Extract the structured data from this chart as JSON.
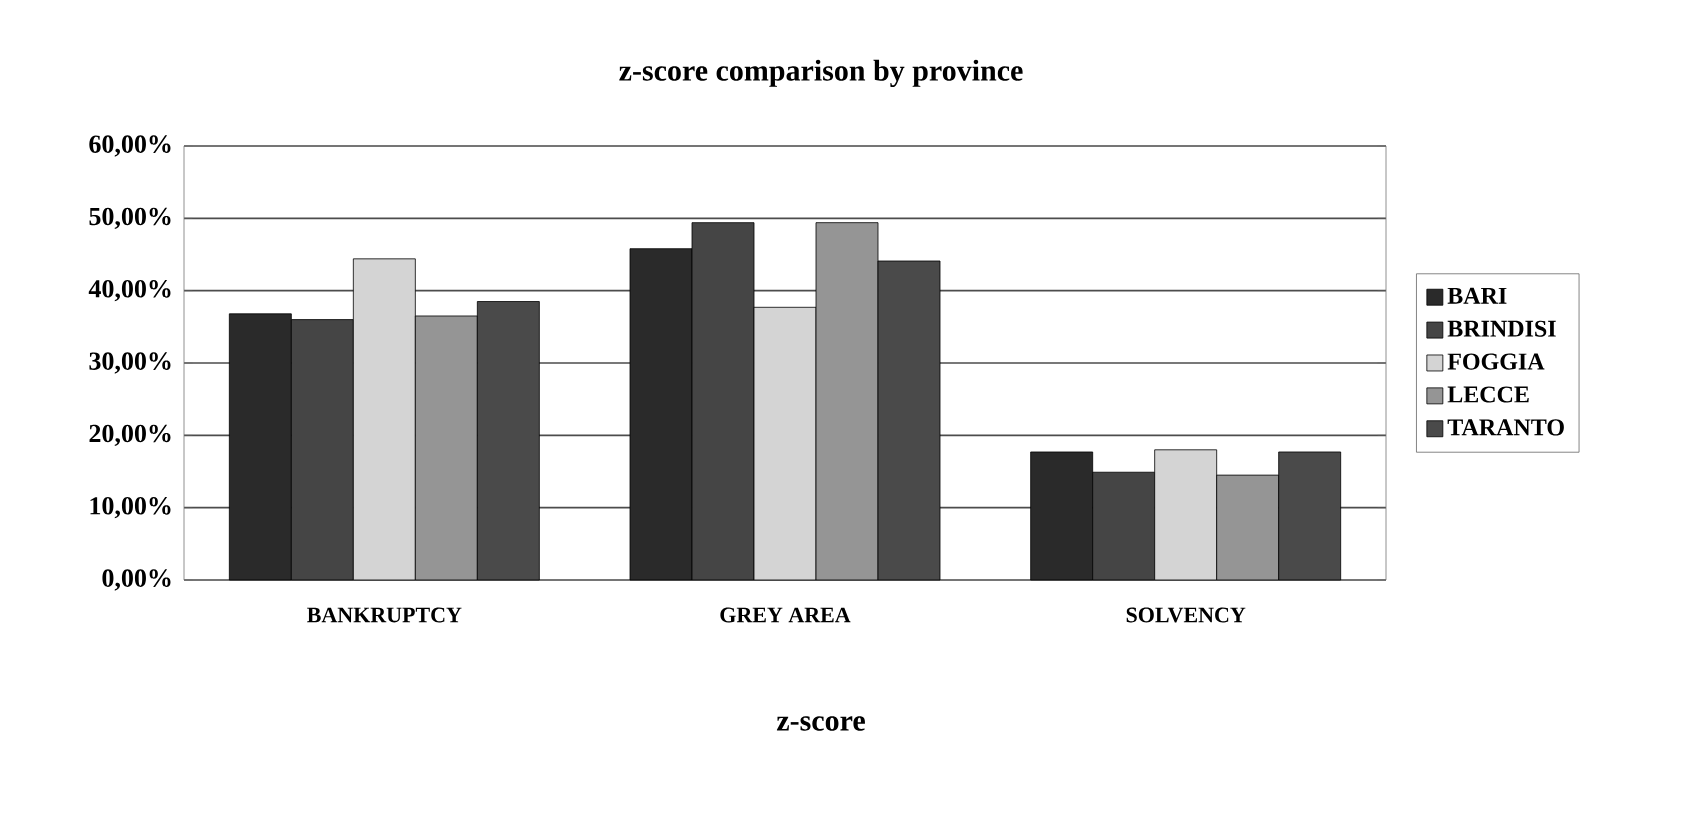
{
  "chart_data": {
    "type": "bar",
    "title": "z-score comparison by province",
    "xlabel": "z-score",
    "categories": [
      "BANKRUPTCY",
      "GREY AREA",
      "SOLVENCY"
    ],
    "series": [
      {
        "name": "BARI",
        "color": "#2a2a2a",
        "values": [
          36.8,
          45.8,
          17.7
        ]
      },
      {
        "name": "BRINDISI",
        "color": "#454545",
        "values": [
          36.0,
          49.4,
          14.9
        ]
      },
      {
        "name": "FOGGIA",
        "color": "#d4d4d4",
        "values": [
          44.4,
          37.7,
          18.0
        ]
      },
      {
        "name": "LECCE",
        "color": "#959595",
        "values": [
          36.5,
          49.4,
          14.5
        ]
      },
      {
        "name": "TARANTO",
        "color": "#4a4a4a",
        "values": [
          38.5,
          44.1,
          17.7
        ]
      }
    ],
    "ylim": [
      0,
      60
    ],
    "yticks": [
      {
        "value": 0,
        "label": "0,00%"
      },
      {
        "value": 10,
        "label": "10,00%"
      },
      {
        "value": 20,
        "label": "20,00%"
      },
      {
        "value": 30,
        "label": "30,00%"
      },
      {
        "value": 40,
        "label": "40,00%"
      },
      {
        "value": 50,
        "label": "50,00%"
      },
      {
        "value": 60,
        "label": "60,00%"
      }
    ],
    "grid": "y",
    "legend": "right"
  }
}
